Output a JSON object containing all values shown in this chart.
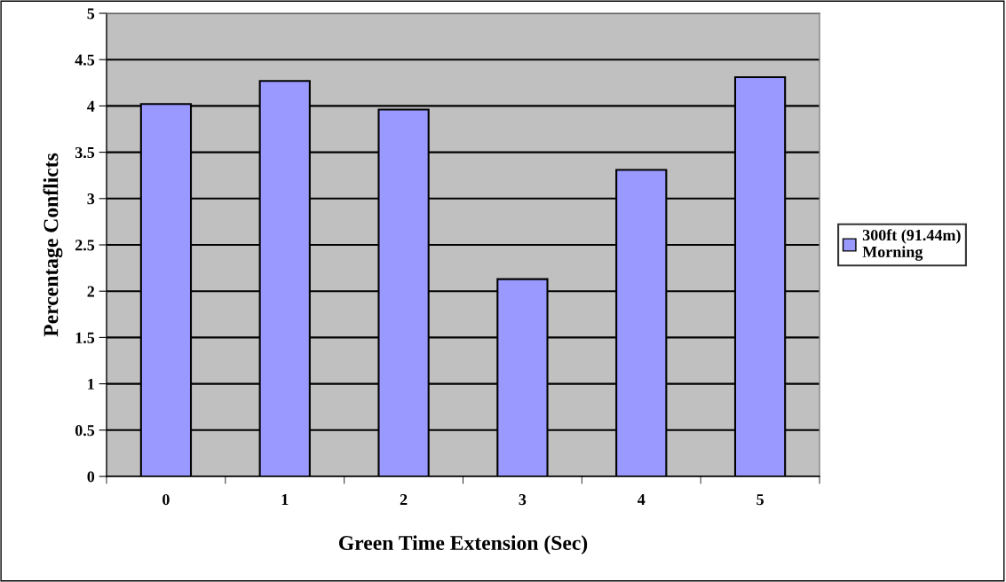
{
  "chart_data": {
    "type": "bar",
    "xlabel": "Green Time Extension (Sec)",
    "ylabel": "Percentage Conflicts",
    "categories": [
      "0",
      "1",
      "2",
      "3",
      "4",
      "5"
    ],
    "series": [
      {
        "name": "300ft (91.44m)\nMorning",
        "color": "#9999ff",
        "values": [
          4.02,
          4.27,
          3.96,
          2.13,
          3.31,
          4.31
        ]
      }
    ],
    "ylim": [
      0,
      5
    ],
    "yticks": [
      0,
      0.5,
      1,
      1.5,
      2,
      2.5,
      3,
      3.5,
      4,
      4.5,
      5
    ],
    "grid": "y",
    "legend": "right"
  }
}
